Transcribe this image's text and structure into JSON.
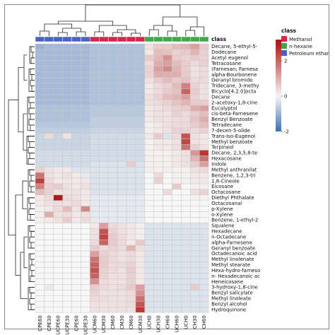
{
  "chart_data": {
    "type": "heatmap",
    "columns": [
      "CPE60",
      "CPE30",
      "UCPE60",
      "UCPE30",
      "CPE60",
      "UCPE30",
      "UCM60",
      "UCM30",
      "CM60",
      "CM30",
      "CM60",
      "UCM30",
      "UCH0",
      "UCH30",
      "CH60",
      "UCH60",
      "UCH0",
      "CH30",
      "CH60"
    ],
    "rows": [
      "Decane, 5-ethyl-5-",
      "Dodecane",
      "Acetyl eugenol",
      "Tetracosane",
      "(Farnesan; Farnesa",
      "alpha-Bourbonene",
      "Geranyl bromide",
      "Tridecane, 3-methy",
      "Bicyclo[4.2.0]octa",
      "Decane",
      "2-acetoxy-1,8-cine",
      "Eucalyptol",
      "cis-beta-Farnesene",
      "Benzyl Benzoate",
      "Tetradecane",
      "7-decen-5-olide",
      "Trans-Iso-Eugenol",
      "Methyl benzoate",
      "Terpineol",
      "Decane, 2,3,5,8-te",
      "Hexacosane",
      "Indole",
      "Methyl anthranilat",
      "Benzene, 1,2,3-tri",
      "1,8-Cineole",
      "Eicosane",
      "Octacosane",
      "Diethyl Phthalate",
      "Octacosanal",
      "p-Xylene",
      "o-Xylene",
      "Benzene, 1-ethyl-2",
      "Squalene",
      "Hexadecane",
      "n-Octadecane",
      "alpha-Farnesene",
      "Geranyl benzoate",
      "Octadecanoic acid",
      "Methyl linolenate",
      "Methyl stearate",
      "Hexa-hydro-farneso",
      "n- Hexadecanoic ac",
      "Heneicosane",
      "3-hydroxy-1,8-cine",
      "Benzyl salicylate",
      "Methyl linoleate",
      "Benzyl alcohol",
      "Hydroquinone"
    ],
    "column_classes": [
      "Petroleum ethar",
      "Petroleum ethar",
      "Petroleum ethar",
      "Petroleum ethar",
      "Petroleum ethar",
      "Petroleum ethar",
      "Methanol",
      "Methanol",
      "Methanol",
      "Methanol",
      "Methanol",
      "Methanol",
      "n-hexane",
      "n-hexane",
      "n-hexane",
      "n-hexane",
      "n-hexane",
      "n-hexane",
      "n-hexane"
    ],
    "values": [
      [
        -1.0,
        -0.9,
        -0.9,
        -0.9,
        -0.9,
        -0.9,
        -0.8,
        -0.8,
        -0.8,
        -0.8,
        -0.8,
        -0.8,
        0.3,
        0.6,
        0.6,
        0.8,
        0.9,
        1.2,
        0.6
      ],
      [
        -0.9,
        -0.9,
        -0.9,
        -0.9,
        -0.9,
        -0.9,
        -0.8,
        -0.8,
        -0.8,
        -0.8,
        -0.8,
        -0.8,
        0.2,
        0.8,
        0.7,
        0.5,
        0.6,
        0.9,
        0.5
      ],
      [
        -0.9,
        -0.9,
        -0.9,
        -0.9,
        -0.9,
        -0.9,
        -0.8,
        -0.8,
        -0.8,
        -0.8,
        -0.8,
        -0.8,
        0.6,
        0.9,
        1.4,
        0.6,
        0.5,
        0.6,
        0.5
      ],
      [
        -0.9,
        -0.9,
        -0.9,
        -0.9,
        -0.9,
        -0.9,
        -0.8,
        -0.8,
        -0.8,
        -0.8,
        -0.8,
        -0.8,
        0.4,
        1.0,
        1.2,
        0.8,
        0.6,
        0.4,
        0.5
      ],
      [
        -0.9,
        -0.9,
        -0.9,
        -0.9,
        -0.9,
        -0.9,
        -0.8,
        -0.8,
        -0.8,
        -0.8,
        -0.8,
        -0.8,
        0.5,
        1.2,
        1.5,
        0.9,
        0.6,
        0.3,
        0.4
      ],
      [
        -0.9,
        -0.9,
        -0.9,
        -0.9,
        -0.9,
        -0.9,
        -0.8,
        -0.8,
        -0.8,
        -0.8,
        -0.8,
        -0.8,
        0.5,
        1.0,
        1.0,
        1.0,
        0.6,
        0.3,
        0.4
      ],
      [
        -0.9,
        -0.9,
        -0.9,
        -0.9,
        -0.9,
        -0.9,
        -0.8,
        -0.8,
        -0.8,
        -0.8,
        -0.8,
        -0.8,
        0.3,
        0.6,
        0.8,
        0.6,
        0.7,
        0.4,
        0.4
      ],
      [
        -0.9,
        -0.9,
        -0.9,
        -0.9,
        -0.9,
        -0.9,
        -0.8,
        -0.8,
        -0.8,
        -0.8,
        -0.8,
        -0.8,
        0.2,
        0.4,
        0.5,
        0.8,
        1.6,
        0.5,
        0.3
      ],
      [
        -0.9,
        -0.9,
        -0.9,
        -0.9,
        -0.9,
        -0.9,
        -0.8,
        -0.8,
        -0.8,
        -0.8,
        -0.8,
        -0.8,
        0.2,
        0.4,
        0.6,
        0.7,
        2.0,
        0.6,
        0.3
      ],
      [
        -0.9,
        -0.9,
        -0.9,
        -0.9,
        -0.9,
        -0.9,
        -0.8,
        -0.8,
        -0.8,
        -0.8,
        -0.8,
        -0.8,
        0.3,
        0.5,
        0.8,
        0.9,
        1.2,
        0.5,
        0.3
      ],
      [
        -0.9,
        -0.9,
        -0.9,
        -0.9,
        -0.9,
        -0.9,
        -0.8,
        -0.8,
        -0.8,
        -0.8,
        -0.8,
        -0.8,
        0.3,
        0.4,
        0.5,
        0.7,
        0.9,
        0.6,
        0.6
      ],
      [
        -0.8,
        -0.8,
        -0.8,
        -0.8,
        -0.8,
        -0.8,
        -0.7,
        -0.7,
        -0.7,
        -0.7,
        -0.7,
        -0.7,
        0.2,
        0.3,
        0.4,
        0.5,
        0.6,
        1.0,
        1.2
      ],
      [
        -0.8,
        -0.8,
        -0.8,
        -0.8,
        -0.8,
        -0.8,
        -0.7,
        -0.7,
        -0.7,
        -0.7,
        -0.7,
        -0.7,
        0.2,
        0.3,
        0.3,
        0.5,
        0.4,
        0.6,
        0.8
      ],
      [
        -0.8,
        -0.8,
        -0.8,
        -0.8,
        -0.8,
        -0.8,
        -0.6,
        -0.6,
        -0.6,
        -0.6,
        -0.6,
        -0.6,
        0.2,
        0.3,
        0.3,
        0.4,
        0.4,
        0.7,
        1.0
      ],
      [
        -0.7,
        -0.7,
        -0.7,
        -0.7,
        -0.7,
        -0.7,
        -0.6,
        -0.6,
        -0.6,
        -0.6,
        -0.6,
        -0.6,
        0.1,
        0.2,
        0.3,
        0.4,
        0.4,
        0.6,
        0.8
      ],
      [
        -0.6,
        -0.6,
        -0.6,
        -0.6,
        -0.6,
        -0.6,
        -0.5,
        -0.5,
        -0.5,
        -0.5,
        -0.5,
        -0.5,
        0.1,
        0.2,
        0.3,
        0.5,
        0.5,
        0.4,
        0.5
      ],
      [
        -0.5,
        0.4,
        -0.5,
        0.3,
        -0.5,
        -0.5,
        -0.4,
        -0.4,
        -0.4,
        -0.4,
        -0.4,
        -0.4,
        0.2,
        0.6,
        -0.3,
        0.4,
        2.2,
        0.3,
        0.2
      ],
      [
        -0.5,
        -0.5,
        -0.5,
        -0.5,
        -0.5,
        -0.5,
        -0.4,
        -0.4,
        -0.4,
        -0.4,
        -0.4,
        -0.4,
        0.1,
        0.2,
        0.2,
        0.3,
        2.4,
        0.3,
        0.2
      ],
      [
        -0.5,
        -0.5,
        -0.5,
        -0.5,
        -0.5,
        -0.5,
        -0.4,
        -0.4,
        -0.4,
        -0.4,
        -0.4,
        -0.4,
        0.1,
        0.2,
        0.2,
        0.3,
        1.8,
        0.5,
        0.3
      ],
      [
        -0.4,
        -0.4,
        -0.4,
        -0.4,
        -0.4,
        -0.4,
        -0.4,
        -0.4,
        -0.4,
        -0.4,
        -0.4,
        -0.4,
        0.1,
        0.1,
        0.1,
        0.2,
        0.3,
        1.3,
        2.6
      ],
      [
        -0.4,
        -0.4,
        -0.4,
        -0.4,
        -0.4,
        -0.4,
        -0.4,
        -0.4,
        -0.4,
        -0.4,
        -0.4,
        -0.4,
        0.1,
        0.1,
        0.1,
        0.2,
        0.3,
        0.9,
        1.8
      ],
      [
        -0.4,
        -0.4,
        -0.4,
        -0.4,
        -0.4,
        -0.4,
        -0.3,
        -0.3,
        -0.3,
        -0.3,
        0.6,
        -0.3,
        0.1,
        0.1,
        0.1,
        0.2,
        0.3,
        0.6,
        1.2
      ],
      [
        0.5,
        0.3,
        0.2,
        0.2,
        -0.3,
        -0.3,
        -0.3,
        -0.3,
        -0.3,
        -0.3,
        -0.3,
        -0.3,
        0.1,
        0.1,
        0.1,
        0.1,
        0.1,
        0.3,
        0.4
      ],
      [
        1.8,
        0.3,
        0.2,
        0.3,
        0.2,
        -0.2,
        -0.3,
        -0.3,
        -0.3,
        -0.3,
        -0.3,
        -0.3,
        0.0,
        0.4,
        0.0,
        0.1,
        0.1,
        0.2,
        0.2
      ],
      [
        2.5,
        0.4,
        0.2,
        0.2,
        0.2,
        0.2,
        -0.3,
        -0.3,
        -0.3,
        -0.3,
        -0.3,
        -0.3,
        0.0,
        0.5,
        0.0,
        0.1,
        0.1,
        0.2,
        0.2
      ],
      [
        1.6,
        0.5,
        0.6,
        0.3,
        0.2,
        0.3,
        -0.3,
        -0.3,
        -0.3,
        -0.3,
        -0.3,
        -0.3,
        0.0,
        0.0,
        0.0,
        0.6,
        0.0,
        0.1,
        0.1
      ],
      [
        0.8,
        0.5,
        0.3,
        0.3,
        0.3,
        0.2,
        -0.3,
        -0.3,
        -0.3,
        -0.3,
        -0.3,
        -0.3,
        0.0,
        0.0,
        0.4,
        0.0,
        0.0,
        0.3,
        0.5
      ],
      [
        0.2,
        0.4,
        3.2,
        0.4,
        0.3,
        0.2,
        -0.2,
        -0.2,
        -0.2,
        -0.2,
        -0.2,
        -0.2,
        0.0,
        0.0,
        0.0,
        0.0,
        0.0,
        0.1,
        0.1
      ],
      [
        0.2,
        0.3,
        0.4,
        0.3,
        0.4,
        0.2,
        -0.2,
        -0.2,
        -0.2,
        -0.2,
        -0.2,
        -0.2,
        0.0,
        0.0,
        0.0,
        0.0,
        0.0,
        0.0,
        0.0
      ],
      [
        0.1,
        0.2,
        0.4,
        0.8,
        0.3,
        1.5,
        -0.2,
        -0.2,
        -0.2,
        -0.2,
        -0.2,
        -0.2,
        0.0,
        0.0,
        0.0,
        0.0,
        0.0,
        0.0,
        0.0
      ],
      [
        0.1,
        1.0,
        0.3,
        0.4,
        0.2,
        0.3,
        -0.2,
        -0.2,
        -0.2,
        -0.2,
        -0.2,
        -0.2,
        0.0,
        0.0,
        0.0,
        0.0,
        0.0,
        0.0,
        0.0
      ],
      [
        0.1,
        0.2,
        0.3,
        0.6,
        0.2,
        0.4,
        -0.2,
        -0.2,
        -0.2,
        -0.2,
        -0.2,
        -0.2,
        0.0,
        0.0,
        0.0,
        0.0,
        0.0,
        0.0,
        0.0
      ],
      [
        0.0,
        0.0,
        0.0,
        0.0,
        0.0,
        0.0,
        0.2,
        1.2,
        0.4,
        0.3,
        0.2,
        0.1,
        -0.3,
        -0.3,
        -0.3,
        -0.3,
        -0.3,
        -0.3,
        -0.3
      ],
      [
        0.0,
        0.0,
        0.0,
        0.0,
        0.0,
        0.0,
        0.3,
        2.2,
        0.5,
        0.3,
        0.2,
        0.1,
        -0.3,
        -0.3,
        -0.3,
        -0.3,
        -0.3,
        -0.3,
        -0.3
      ],
      [
        0.0,
        0.0,
        0.0,
        0.0,
        0.0,
        0.0,
        0.3,
        2.4,
        0.6,
        0.4,
        0.2,
        0.1,
        -0.3,
        -0.3,
        -0.3,
        -0.3,
        -0.3,
        -0.3,
        -0.3
      ],
      [
        0.0,
        0.0,
        0.0,
        0.0,
        0.0,
        0.0,
        0.4,
        2.0,
        0.6,
        0.4,
        0.2,
        0.6,
        -0.3,
        -0.3,
        -0.3,
        -0.3,
        -0.3,
        -0.3,
        -0.3
      ],
      [
        0.0,
        0.0,
        0.0,
        0.0,
        0.0,
        0.0,
        0.6,
        0.4,
        0.5,
        0.4,
        0.9,
        0.3,
        -0.3,
        -0.3,
        -0.3,
        -0.3,
        -0.3,
        -0.3,
        -0.3
      ],
      [
        0.0,
        0.0,
        0.0,
        0.0,
        0.0,
        0.0,
        1.2,
        0.5,
        0.4,
        0.3,
        0.4,
        0.2,
        -0.3,
        -0.3,
        -0.3,
        -0.3,
        -0.3,
        -0.3,
        -0.3
      ],
      [
        0.0,
        0.0,
        0.0,
        0.0,
        0.0,
        0.0,
        1.8,
        0.6,
        0.4,
        0.3,
        0.4,
        0.2,
        -0.3,
        -0.3,
        -0.3,
        -0.3,
        -0.3,
        -0.3,
        -0.3
      ],
      [
        0.0,
        0.0,
        0.0,
        0.0,
        0.0,
        0.0,
        2.0,
        0.6,
        0.4,
        0.4,
        0.5,
        0.2,
        -0.3,
        -0.3,
        -0.3,
        -0.3,
        -0.3,
        -0.3,
        -0.3
      ],
      [
        0.0,
        0.0,
        0.0,
        0.0,
        0.0,
        0.0,
        2.2,
        0.5,
        0.4,
        0.3,
        0.6,
        0.2,
        -0.3,
        -0.3,
        -0.3,
        -0.3,
        -0.3,
        -0.3,
        -0.3
      ],
      [
        0.0,
        0.0,
        0.0,
        0.0,
        0.0,
        0.0,
        2.0,
        0.5,
        0.3,
        0.3,
        0.5,
        0.2,
        -0.3,
        -0.3,
        -0.3,
        -0.3,
        -0.3,
        -0.3,
        -0.3
      ],
      [
        0.0,
        0.0,
        0.0,
        0.0,
        0.0,
        0.0,
        1.4,
        0.4,
        0.3,
        0.3,
        0.5,
        0.2,
        -0.3,
        -0.3,
        -0.3,
        -0.3,
        -0.3,
        -0.3,
        -0.3
      ],
      [
        0.0,
        0.2,
        0.0,
        0.0,
        0.0,
        0.0,
        0.6,
        0.4,
        0.3,
        0.4,
        0.6,
        1.2,
        -0.3,
        -0.3,
        -0.3,
        -0.3,
        -0.3,
        0.6,
        -0.3
      ],
      [
        0.0,
        0.0,
        0.0,
        0.0,
        0.0,
        0.0,
        0.5,
        0.3,
        0.3,
        0.3,
        0.4,
        1.4,
        -0.3,
        -0.3,
        -0.3,
        -0.3,
        -0.3,
        -0.3,
        -0.3
      ],
      [
        0.0,
        0.0,
        0.0,
        0.0,
        0.0,
        0.0,
        0.4,
        0.4,
        0.3,
        0.3,
        0.4,
        1.8,
        -0.3,
        -0.3,
        -0.3,
        -0.3,
        -0.3,
        -0.3,
        -0.3
      ],
      [
        0.0,
        0.0,
        0.0,
        0.0,
        0.0,
        0.0,
        0.3,
        0.3,
        0.3,
        0.3,
        0.4,
        2.2,
        -0.3,
        -0.3,
        -0.3,
        -0.3,
        -0.3,
        -0.3,
        -0.3
      ],
      [
        0.0,
        0.0,
        0.0,
        0.0,
        0.0,
        0.0,
        0.3,
        0.3,
        0.3,
        0.3,
        0.3,
        2.6,
        -0.3,
        -0.3,
        -0.3,
        -0.3,
        -0.3,
        -0.3,
        -0.3
      ]
    ],
    "color_scale": {
      "ticks": [
        2,
        0,
        -2
      ],
      "colors": {
        "low": "#2c62a8",
        "mid": "#f7f7f7",
        "high": "#b01a1a"
      },
      "range": [
        -2,
        3.2
      ]
    },
    "legend": {
      "title": "class",
      "entries": [
        {
          "label": "Methanol",
          "color": "#d6244b"
        },
        {
          "label": "n-hexane",
          "color": "#3fa84a"
        },
        {
          "label": "Petroleum ethar",
          "color": "#4a62c6"
        }
      ],
      "placement": "right"
    },
    "annotation_title": "class",
    "dendrograms": [
      "top",
      "left"
    ]
  }
}
